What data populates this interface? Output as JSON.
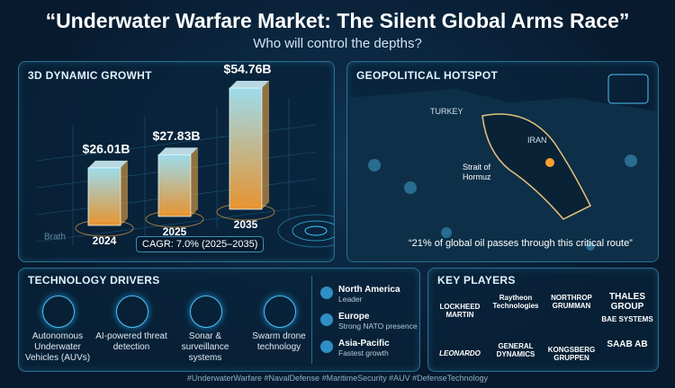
{
  "header": {
    "title": "“Underwater Warfare Market: The Silent Global Arms Race”",
    "subtitle": "Who will control the depths?"
  },
  "chart_data": {
    "type": "bar",
    "title": "3D DYNAMIC GROWHT",
    "categories": [
      "2024",
      "2025",
      "2035"
    ],
    "values": [
      26.01,
      27.83,
      54.76
    ],
    "value_labels": [
      "$26.01B",
      "$27.83B",
      "$54.76B"
    ],
    "color": "#ffb347",
    "axis_label": "Brath",
    "annotation": "CAGR: 7.0% (2025–2035)"
  },
  "hotspot": {
    "title": "GEOPOLITICAL HOTSPOT",
    "labels": [
      "TURKEY",
      "IRAN",
      "Strait of Hormuz"
    ],
    "quote": "“21% of global oil passes through this critical route”"
  },
  "technology": {
    "title": "TECHNOLOGY DRIVERS",
    "items": [
      "Autonomous Underwater Vehicles (AUVs)",
      "AI-powered threat detection",
      "Sonar & surveillance systems",
      "Swarm drone technology"
    ]
  },
  "regions": [
    {
      "name": "North America",
      "note": "Leader"
    },
    {
      "name": "Europe",
      "note": "Strong NATO presence"
    },
    {
      "name": "Asia-Pacific",
      "note": "Fastest growth"
    }
  ],
  "players": {
    "title": "KEY PLAYERS",
    "companies": [
      "LOCKHEED MARTIN",
      "Raytheon Technologies",
      "NORTHROP GRUMMAN",
      "THALES GROUP",
      "BAE SYSTEMS",
      "LEONARDO",
      "GENERAL DYNAMICS",
      "KONGSBERG GRUPPEN",
      "SAAB AB"
    ]
  },
  "footer": "#UnderwaterWarfare #NavalDefense #MaritimeSecurity #AUV #DefenseTechnology"
}
